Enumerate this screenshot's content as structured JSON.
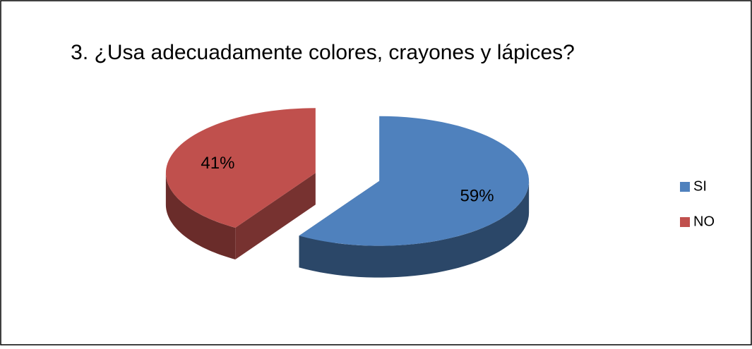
{
  "chart_data": {
    "type": "pie",
    "title": "3. ¿Usa adecuadamente colores, crayones y lápices?",
    "categories": [
      "SI",
      "NO"
    ],
    "values": [
      59,
      41
    ],
    "value_labels": [
      "59%",
      "41%"
    ],
    "colors": [
      "#4f81bd",
      "#c0504d"
    ],
    "legend": "right"
  }
}
